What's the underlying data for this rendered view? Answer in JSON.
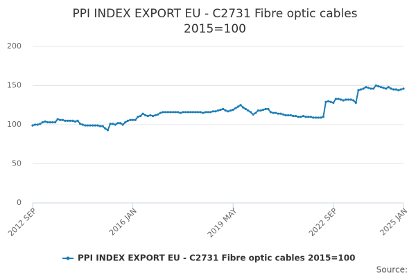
{
  "chart_data": {
    "type": "line",
    "title": [
      "PPI INDEX EXPORT EU - C2731 Fibre optic cables",
      "2015=100"
    ],
    "source": "Source:",
    "categories": [
      "2012 SEP",
      null,
      null,
      null,
      null,
      null,
      null,
      null,
      null,
      null,
      null,
      null,
      null,
      null,
      null,
      null,
      null,
      null,
      null,
      null,
      null,
      null,
      null,
      null,
      null,
      null,
      null,
      null,
      null,
      null,
      null,
      null,
      null,
      null,
      null,
      null,
      null,
      null,
      null,
      null,
      "2016 JAN",
      null,
      null,
      null,
      null,
      null,
      null,
      null,
      null,
      null,
      null,
      null,
      null,
      null,
      null,
      null,
      null,
      null,
      null,
      null,
      null,
      null,
      null,
      null,
      null,
      null,
      null,
      null,
      null,
      null,
      null,
      null,
      null,
      null,
      null,
      null,
      null,
      null,
      null,
      null,
      "2019 MAY",
      null,
      null,
      null,
      null,
      null,
      null,
      null,
      null,
      null,
      null,
      null,
      null,
      null,
      null,
      null,
      null,
      null,
      null,
      null,
      null,
      null,
      null,
      null,
      null,
      null,
      null,
      null,
      null,
      null,
      null,
      null,
      null,
      null,
      null,
      null,
      null,
      null,
      null,
      null,
      "2022 SEP",
      null,
      null,
      null,
      null,
      null,
      null,
      null,
      null,
      null,
      null,
      null,
      null,
      null,
      null,
      null,
      null,
      null,
      null,
      null,
      null,
      null,
      null,
      null,
      null,
      null,
      null,
      null,
      "2025 JAN"
    ],
    "series": [
      {
        "name": "PPI INDEX EXPORT EU - C2731 Fibre optic cables 2015=100",
        "color": "#1a7db6",
        "values": [
          99,
          100,
          100,
          101,
          103,
          104,
          103,
          103,
          103,
          103,
          107,
          106,
          106,
          105,
          105,
          105,
          105,
          104,
          105,
          101,
          100,
          99,
          99,
          99,
          99,
          99,
          99,
          98,
          98,
          95,
          93,
          101,
          101,
          100,
          102,
          102,
          100,
          103,
          105,
          106,
          106,
          106,
          110,
          111,
          114,
          112,
          111,
          112,
          111,
          112,
          113,
          115,
          116,
          116,
          116,
          116,
          116,
          116,
          116,
          115,
          116,
          116,
          116,
          116,
          116,
          116,
          116,
          116,
          115,
          116,
          116,
          116,
          117,
          117,
          118,
          119,
          120,
          118,
          117,
          118,
          119,
          121,
          123,
          125,
          122,
          120,
          118,
          116,
          113,
          115,
          118,
          118,
          119,
          120,
          120,
          116,
          115,
          115,
          114,
          114,
          113,
          112,
          112,
          112,
          111,
          111,
          110,
          110,
          111,
          110,
          110,
          110,
          109,
          109,
          109,
          109,
          110,
          129,
          130,
          129,
          128,
          133,
          133,
          132,
          131,
          132,
          132,
          132,
          131,
          128,
          144,
          145,
          146,
          148,
          147,
          146,
          146,
          150,
          149,
          148,
          147,
          146,
          148,
          146,
          145,
          145,
          144,
          145,
          146
        ]
      }
    ],
    "ylim": [
      0,
      200
    ],
    "yticks": [
      0,
      50,
      100,
      150,
      200
    ],
    "grid": true
  }
}
